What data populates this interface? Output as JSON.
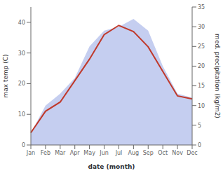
{
  "chart_data": {
    "type": "line",
    "categories": [
      "Jan",
      "Feb",
      "Mar",
      "Apr",
      "May",
      "Jun",
      "Jul",
      "Aug",
      "Sep",
      "Oct",
      "Nov",
      "Dec"
    ],
    "series": [
      {
        "type": "area",
        "axis": "y2",
        "color": "#c5cef0",
        "values": [
          3,
          10,
          13,
          17,
          25,
          29,
          30,
          32,
          29,
          20,
          13,
          12
        ]
      },
      {
        "type": "line",
        "color": "#c0392b",
        "values": [
          4,
          11,
          14,
          21,
          28,
          36,
          39,
          37,
          32,
          24,
          16,
          15
        ]
      }
    ],
    "xlabel": "date (month)",
    "ylabel": "max temp (C)",
    "y2label": "med. precipitation (kg/m2)",
    "ylim": [
      0,
      45
    ],
    "yticks": [
      0,
      10,
      20,
      30,
      40
    ],
    "y2lim": [
      0,
      35
    ],
    "y2ticks": [
      0,
      5,
      10,
      15,
      20,
      25,
      30,
      35
    ],
    "grid": false
  }
}
